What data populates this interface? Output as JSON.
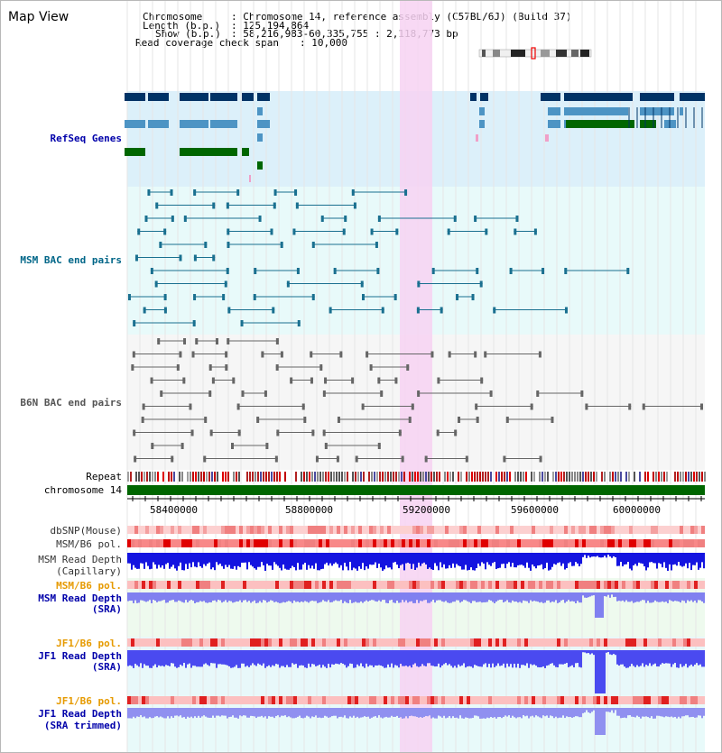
{
  "page_title": "Map View",
  "header": {
    "chromosome_key": "Chromosome",
    "chromosome_val": ": Chromosome 14, reference assembly (C57BL/6J) (Build 37)",
    "length_key": "Length (b.p.)",
    "length_val": ": 125,194,864",
    "show_key": "Show (b.p.)",
    "show_val": ": 58,216,983-60,335,755 : 2,118,773 bp",
    "coverage_key": "Read coverage check span",
    "coverage_val": ": 10,000"
  },
  "tracks": {
    "refseq": "RefSeq Genes",
    "msm_bac": "MSM BAC end pairs",
    "b6n_bac": "B6N BAC end pairs",
    "repeat": "Repeat",
    "chromosome": "chromosome 14",
    "dbsnp": "dbSNP(Mouse)",
    "msm_b6_pol": "MSM/B6 pol.",
    "msm_depth_cap_1": "MSM Read Depth",
    "msm_depth_cap_2": "(Capillary)",
    "msm_b6_pol_2": "MSM/B6 pol.",
    "msm_depth_sra_1": "MSM Read Depth",
    "msm_depth_sra_2": "(SRA)",
    "jf1_b6_pol": "JF1/B6 pol.",
    "jf1_depth_sra_1": "JF1 Read Depth",
    "jf1_depth_sra_2": "(SRA)",
    "jf1_b6_pol_2": "JF1/B6 pol.",
    "jf1_depth_trim_1": "JF1 Read Depth",
    "jf1_depth_trim_2": "(SRA trimmed)"
  },
  "axis_ticks": [
    "58400000",
    "58800000",
    "59200000",
    "59600000",
    "60000000"
  ],
  "colors": {
    "refseq_dark": "#003366",
    "refseq_mid": "#4d94c4",
    "refseq_green": "#006600",
    "msm_label": "#006688",
    "b6n_label": "#555555",
    "orange_label": "#e69a00",
    "blue_label": "#0000aa",
    "highlight": "#f7d2f2"
  }
}
